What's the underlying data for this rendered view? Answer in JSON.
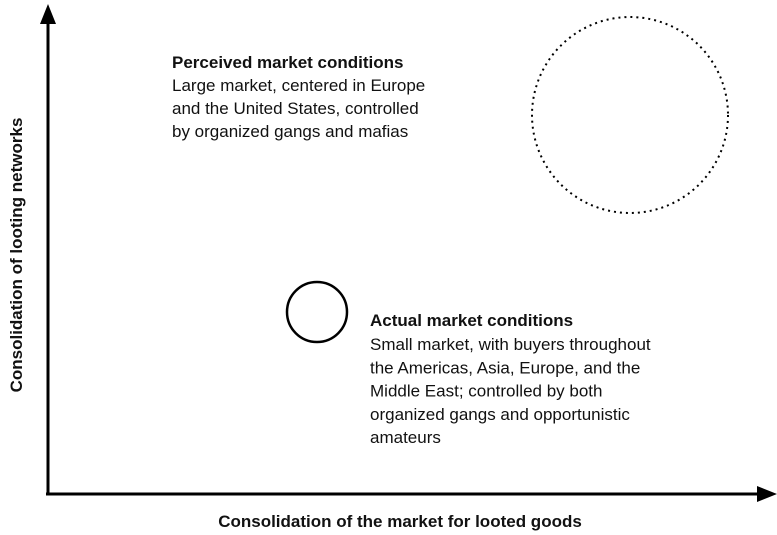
{
  "axes": {
    "y_label": "Consolidation of looting networks",
    "x_label": "Consolidation of the market for looted goods"
  },
  "perceived": {
    "title": "Perceived market conditions",
    "lines": [
      "Large market, centered in Europe",
      "and the United States, controlled",
      "by organized gangs and mafias"
    ]
  },
  "actual": {
    "title": "Actual market conditions",
    "lines": [
      "Small market, with buyers throughout",
      "the Americas, Asia, Europe, and the",
      "Middle East; controlled by both",
      "organized gangs and opportunistic",
      "amateurs"
    ]
  }
}
